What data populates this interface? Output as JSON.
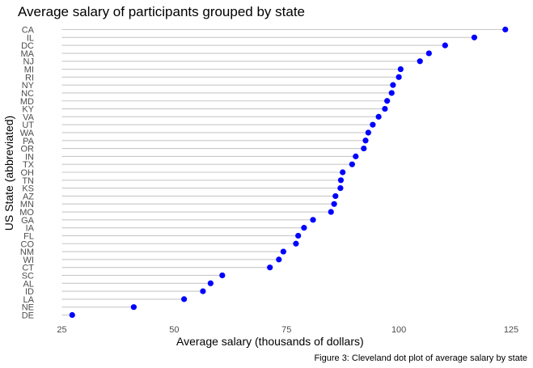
{
  "chart_data": {
    "type": "scatter",
    "subtype": "cleveland-dot",
    "title": "Average salary of participants grouped by state",
    "xlabel": "Average salary (thousands of dollars)",
    "ylabel": "US State (abbreviated)",
    "caption": "Figure 3: Cleveland dot plot of average salary by state",
    "xlim": [
      25,
      125
    ],
    "xticks": [
      25,
      50,
      75,
      100,
      125
    ],
    "grid": false,
    "legend": "none",
    "point_color": "#0000ff",
    "stem_color": "#c8c8c8",
    "categories": [
      "CA",
      "IL",
      "DC",
      "MA",
      "NJ",
      "MI",
      "RI",
      "NY",
      "NC",
      "MD",
      "KY",
      "VA",
      "UT",
      "WA",
      "PA",
      "OR",
      "IN",
      "TX",
      "OH",
      "TN",
      "KS",
      "AZ",
      "MN",
      "MO",
      "GA",
      "IA",
      "FL",
      "CO",
      "NM",
      "WI",
      "CT",
      "SC",
      "AL",
      "ID",
      "LA",
      "NE",
      "DE"
    ],
    "values": [
      123.7,
      116.8,
      110.3,
      106.7,
      104.7,
      100.4,
      100.0,
      98.7,
      98.4,
      97.4,
      96.9,
      95.5,
      94.2,
      93.2,
      92.6,
      92.2,
      90.4,
      89.6,
      87.5,
      87.1,
      87.0,
      85.9,
      85.6,
      84.9,
      80.9,
      78.9,
      77.6,
      77.1,
      74.3,
      73.3,
      71.3,
      60.7,
      58.1,
      56.4,
      52.2,
      41.0,
      27.3
    ]
  }
}
